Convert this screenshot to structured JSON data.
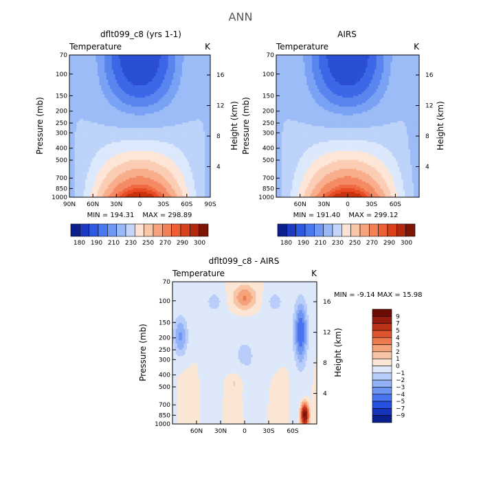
{
  "figure_title": "ANN",
  "chart_data": [
    {
      "type": "heatmap",
      "panel": "model",
      "title": "dflt099_c8 (yrs 1-1)",
      "variable": "Temperature",
      "units": "K",
      "xlabel": "",
      "ylabel": "Pressure (mb)",
      "y2label": "Height (km)",
      "x_ticks": [
        "90N",
        "60N",
        "30N",
        "0",
        "30S",
        "60S",
        "90S"
      ],
      "y_ticks": [
        "70",
        "100",
        "150",
        "200",
        "250",
        "300",
        "400",
        "500",
        "700",
        "850",
        "1000"
      ],
      "y2_ticks": [
        "16",
        "12",
        "8",
        "4"
      ],
      "y_scale": "log",
      "min": 194.31,
      "max": 298.89,
      "min_text": "MIN = 194.31",
      "max_text": "MAX = 298.89",
      "colorbar_levels": [
        "180",
        "190",
        "210",
        "230",
        "250",
        "270",
        "290",
        "300"
      ]
    },
    {
      "type": "heatmap",
      "panel": "obs",
      "title": "AIRS",
      "variable": "Temperature",
      "units": "K",
      "xlabel": "",
      "ylabel": "Pressure (mb)",
      "y2label": "Height (km)",
      "x_ticks": [
        "60N",
        "30N",
        "0",
        "30S",
        "60S"
      ],
      "y_ticks": [
        "70",
        "100",
        "150",
        "200",
        "250",
        "300",
        "400",
        "500",
        "700",
        "850",
        "1000"
      ],
      "y2_ticks": [
        "16",
        "12",
        "8",
        "4"
      ],
      "y_scale": "log",
      "min": 191.4,
      "max": 299.12,
      "min_text": "MIN = 191.40",
      "max_text": "MAX = 299.12",
      "colorbar_levels": [
        "180",
        "190",
        "210",
        "230",
        "250",
        "270",
        "290",
        "300"
      ]
    },
    {
      "type": "heatmap",
      "panel": "diff",
      "title": "dflt099_c8 - AIRS",
      "variable": "Temperature",
      "units": "K",
      "xlabel": "",
      "ylabel": "Pressure (mb)",
      "y2label": "Height (km)",
      "x_ticks": [
        "60N",
        "30N",
        "0",
        "30S",
        "60S"
      ],
      "y_ticks": [
        "70",
        "100",
        "150",
        "200",
        "250",
        "300",
        "400",
        "500",
        "700",
        "850",
        "1000"
      ],
      "y2_ticks": [
        "16",
        "12",
        "8",
        "4"
      ],
      "y_scale": "log",
      "min": -9.14,
      "max": 15.98,
      "minmax_text": "MIN =  -9.14  MAX =  15.98",
      "colorbar_levels": [
        "9",
        "7",
        "5",
        "4",
        "3",
        "2",
        "1",
        "0",
        "−1",
        "−2",
        "−3",
        "−4",
        "−5",
        "−7",
        "−9"
      ]
    }
  ]
}
